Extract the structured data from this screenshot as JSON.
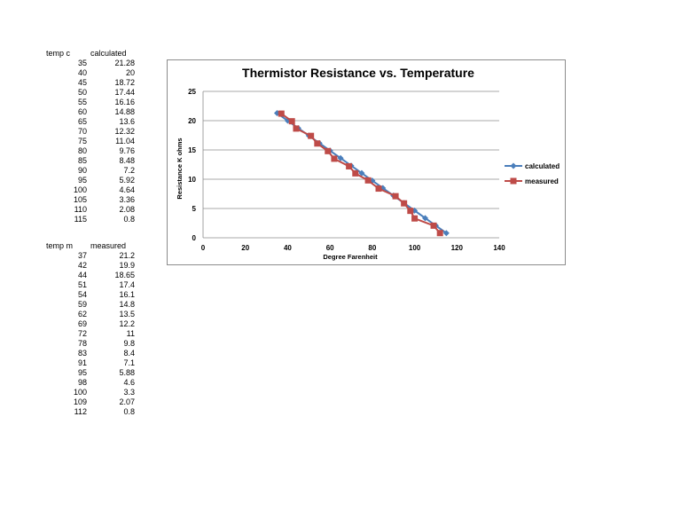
{
  "calculated_table": {
    "headers": [
      "temp c",
      "calculated"
    ],
    "rows": [
      [
        "35",
        "21.28"
      ],
      [
        "40",
        "20"
      ],
      [
        "45",
        "18.72"
      ],
      [
        "50",
        "17.44"
      ],
      [
        "55",
        "16.16"
      ],
      [
        "60",
        "14.88"
      ],
      [
        "65",
        "13.6"
      ],
      [
        "70",
        "12.32"
      ],
      [
        "75",
        "11.04"
      ],
      [
        "80",
        "9.76"
      ],
      [
        "85",
        "8.48"
      ],
      [
        "90",
        "7.2"
      ],
      [
        "95",
        "5.92"
      ],
      [
        "100",
        "4.64"
      ],
      [
        "105",
        "3.36"
      ],
      [
        "110",
        "2.08"
      ],
      [
        "115",
        "0.8"
      ]
    ]
  },
  "measured_table": {
    "headers": [
      "temp m",
      "measured"
    ],
    "rows": [
      [
        "37",
        "21.2"
      ],
      [
        "42",
        "19.9"
      ],
      [
        "44",
        "18.65"
      ],
      [
        "51",
        "17.4"
      ],
      [
        "54",
        "16.1"
      ],
      [
        "59",
        "14.8"
      ],
      [
        "62",
        "13.5"
      ],
      [
        "69",
        "12.2"
      ],
      [
        "72",
        "11"
      ],
      [
        "78",
        "9.8"
      ],
      [
        "83",
        "8.4"
      ],
      [
        "91",
        "7.1"
      ],
      [
        "95",
        "5.88"
      ],
      [
        "98",
        "4.6"
      ],
      [
        "100",
        "3.3"
      ],
      [
        "109",
        "2.07"
      ],
      [
        "112",
        "0.8"
      ]
    ]
  },
  "chart_data": {
    "type": "scatter",
    "title": "Thermistor Resistance vs. Temperature",
    "xlabel": "Degree Farenheit",
    "ylabel": "Resistance K ohms",
    "xlim": [
      0,
      140
    ],
    "ylim": [
      0,
      25
    ],
    "xticks": [
      "0",
      "20",
      "40",
      "60",
      "80",
      "100",
      "120",
      "140"
    ],
    "yticks": [
      "0",
      "5",
      "10",
      "15",
      "20",
      "25"
    ],
    "grid": "horizontal",
    "legend_position": "right",
    "series": [
      {
        "name": "calculated",
        "color": "#4a7ebb",
        "marker": "diamond",
        "x": [
          35,
          40,
          45,
          50,
          55,
          60,
          65,
          70,
          75,
          80,
          85,
          90,
          95,
          100,
          105,
          110,
          115
        ],
        "y": [
          21.28,
          20,
          18.72,
          17.44,
          16.16,
          14.88,
          13.6,
          12.32,
          11.04,
          9.76,
          8.48,
          7.2,
          5.92,
          4.64,
          3.36,
          2.08,
          0.8
        ]
      },
      {
        "name": "measured",
        "color": "#be4b48",
        "marker": "square",
        "x": [
          37,
          42,
          44,
          51,
          54,
          59,
          62,
          69,
          72,
          78,
          83,
          91,
          95,
          98,
          100,
          109,
          112
        ],
        "y": [
          21.2,
          19.9,
          18.65,
          17.4,
          16.1,
          14.8,
          13.5,
          12.2,
          11,
          9.8,
          8.4,
          7.1,
          5.88,
          4.6,
          3.3,
          2.07,
          0.8
        ]
      }
    ]
  }
}
